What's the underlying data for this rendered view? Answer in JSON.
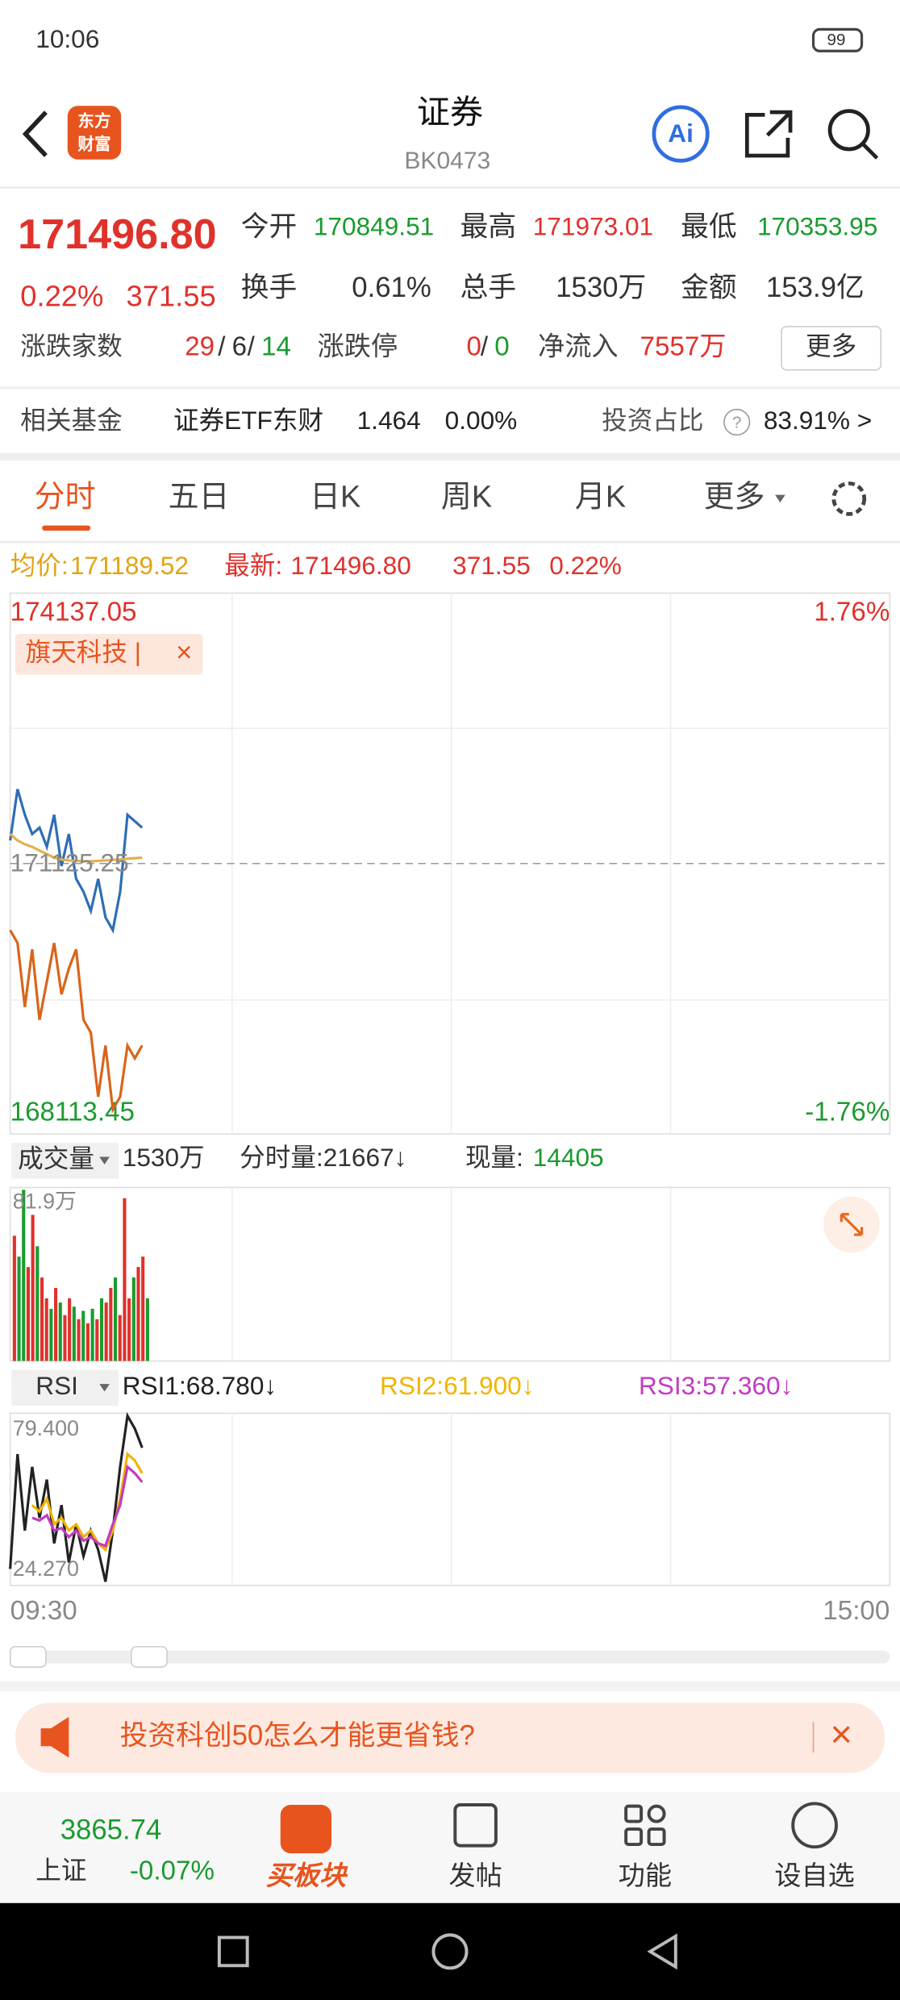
{
  "status_bar": {
    "time": "10:06",
    "battery": "99"
  },
  "header": {
    "logo_top": "东方",
    "logo_bottom": "财富",
    "title": "证券",
    "code": "BK0473",
    "ai": "Ai"
  },
  "quote": {
    "price": "171496.80",
    "change_pct": "0.22%",
    "change": "371.55",
    "open_label": "今开",
    "open": "170849.51",
    "high_label": "最高",
    "high": "171973.01",
    "low_label": "最低",
    "low": "170353.95",
    "turnover_label": "换手",
    "turnover": "0.61%",
    "volume_label": "总手",
    "volume": "1530万",
    "amount_label": "金额",
    "amount": "153.9亿",
    "breadth_label": "涨跌家数",
    "breadth_up": "29",
    "separator": "/",
    "breadth_flat": "6",
    "breadth_down": "14",
    "limit_label": "涨跌停",
    "limit_up": "0",
    "limit_down": "0",
    "inflow_label": "净流入",
    "inflow": "7557万",
    "more": "更多"
  },
  "fund": {
    "label": "相关基金",
    "name": "证券ETF东财",
    "price": "1.464",
    "change": "0.00%",
    "ratio_label": "投资占比",
    "help": "?",
    "ratio": "83.91% >"
  },
  "tabs": [
    "分时",
    "五日",
    "日K",
    "周K",
    "月K",
    "更多"
  ],
  "info": {
    "avg_label": "均价:",
    "avg": "171189.52",
    "latest_label": "最新:",
    "latest": "171496.80",
    "latest_change": "371.55",
    "latest_pct": "0.22%"
  },
  "price_chart": {
    "type": "line",
    "ylim": [
      168113.45,
      174137.05
    ],
    "xlim": [
      0,
      240
    ],
    "pct_max": "1.76%",
    "pct_min": "-1.76%",
    "ref_value": 171125.25,
    "tag": "旗天科技 |",
    "tag_close": "×",
    "x": [
      0,
      2,
      4,
      6,
      8,
      10,
      12,
      14,
      16,
      18,
      20,
      22,
      24,
      26,
      28,
      30,
      32,
      34,
      36
    ],
    "series": [
      {
        "color": "#2f6db5",
        "values": [
          171382,
          171953,
          171668,
          171454,
          171525,
          171311,
          171668,
          171097,
          171454,
          170954,
          170811,
          170597,
          170954,
          170526,
          170383,
          170811,
          171668,
          171596,
          171525
        ]
      },
      {
        "color": "#e3b04b",
        "values": [
          171454,
          171382,
          171340,
          171311,
          171270,
          171230,
          171190,
          171170,
          171160,
          171155,
          171150,
          171150,
          171155,
          171160,
          171165,
          171170,
          171180,
          171185,
          171190
        ]
      },
      {
        "color": "#d9641a",
        "values": [
          170383,
          170240,
          169527,
          170169,
          169384,
          169812,
          170240,
          169669,
          169955,
          170169,
          169384,
          169241,
          168527,
          169098,
          168385,
          168527,
          169098,
          168956,
          169098
        ]
      }
    ]
  },
  "volume_chart": {
    "type": "bar",
    "selector": "成交量",
    "total": "1530万",
    "minute_volume": "分时量:21667↓",
    "current_label": "现量:",
    "current": "14405",
    "ylim": [
      0,
      81.9
    ],
    "yticks": [
      {
        "value": 81.9,
        "label": "81.9万"
      }
    ],
    "values": [
      60,
      50,
      82,
      45,
      70,
      55,
      40,
      30,
      25,
      35,
      28,
      22,
      30,
      26,
      20,
      24,
      18,
      25,
      20,
      30,
      28,
      35,
      40,
      22,
      78,
      30,
      40,
      45,
      50,
      30
    ],
    "colors": [
      "#e0312b",
      "#1a9b2f",
      "#1a9b2f",
      "#e0312b",
      "#e0312b",
      "#1a9b2f",
      "#e0312b",
      "#e0312b",
      "#1a9b2f",
      "#e0312b",
      "#1a9b2f",
      "#e0312b",
      "#e0312b",
      "#1a9b2f",
      "#e0312b",
      "#1a9b2f",
      "#e0312b",
      "#1a9b2f",
      "#e0312b",
      "#1a9b2f",
      "#e0312b",
      "#e0312b",
      "#1a9b2f",
      "#e0312b",
      "#e0312b",
      "#e0312b",
      "#1a9b2f",
      "#e0312b",
      "#e0312b",
      "#1a9b2f"
    ]
  },
  "rsi_chart": {
    "type": "line",
    "selector": "RSI",
    "ylim": [
      24.27,
      79.4
    ],
    "xlim": [
      0,
      240
    ],
    "yticks": [
      {
        "value": 24.27,
        "label": "24.270"
      },
      {
        "value": 79.4,
        "label": "79.400"
      }
    ],
    "x": [
      0,
      2,
      4,
      6,
      8,
      10,
      12,
      14,
      16,
      18,
      20,
      22,
      24,
      26,
      28,
      30,
      32,
      34,
      36
    ],
    "series": [
      {
        "name": "RSI1:68.780↓",
        "color": "#222222",
        "values": [
          29.66,
          66.96,
          42.09,
          62.82,
          46.24,
          58.67,
          37.95,
          50.38,
          31.73,
          44.17,
          33.8,
          42.09,
          35.88,
          25.51,
          42.09,
          62.82,
          79.4,
          75.25,
          69.04
        ]
      },
      {
        "name": "RSI2:61.900↓",
        "color": "#f0b400",
        "values": [
          null,
          null,
          null,
          50.38,
          48.31,
          52.46,
          44.17,
          46.24,
          42.09,
          44.17,
          40.02,
          42.09,
          37.95,
          35.88,
          42.09,
          52.46,
          66.96,
          64.89,
          60.75
        ]
      },
      {
        "name": "RSI3:57.360↓",
        "color": "#c23bc2",
        "values": [
          null,
          null,
          null,
          46.24,
          45.41,
          47.07,
          42.09,
          42.92,
          40.02,
          42.09,
          38.78,
          40.02,
          37.95,
          37.12,
          44.17,
          50.38,
          62.82,
          60.75,
          57.85
        ]
      }
    ]
  },
  "time_axis": {
    "start": "09:30",
    "end": "15:00"
  },
  "banner": {
    "text": "投资科创50怎么才能更省钱?",
    "close": "×"
  },
  "bottom_nav": {
    "index_value": "3865.74",
    "index_name": "上证",
    "index_change": "-0.07%",
    "items": [
      "买板块",
      "发帖",
      "功能",
      "设自选"
    ]
  }
}
